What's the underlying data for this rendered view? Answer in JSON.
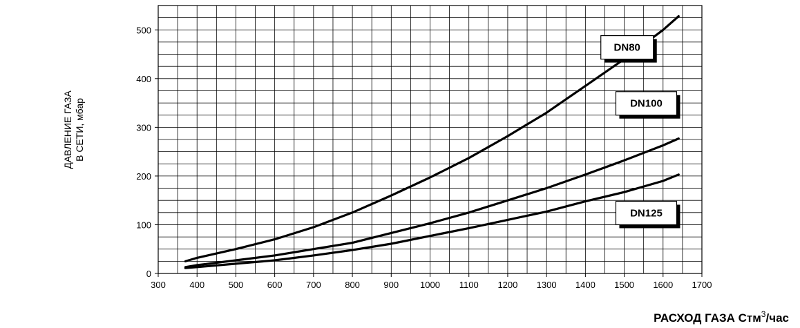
{
  "chart_data": {
    "type": "line",
    "title": "",
    "xlabel": "РАСХОД ГАЗА Стм",
    "xlabel_sup": "3",
    "xlabel_suffix": "/час",
    "ylabel_lines": [
      "ДАВЛЕНИЕ ГАЗА",
      "В СЕТИ, мбар"
    ],
    "xlim": [
      300,
      1700
    ],
    "ylim": [
      0,
      550
    ],
    "x_ticks": [
      300,
      400,
      500,
      600,
      700,
      800,
      900,
      1000,
      1100,
      1200,
      1300,
      1400,
      1500,
      1600,
      1700
    ],
    "y_ticks": [
      0,
      100,
      200,
      300,
      400,
      500
    ],
    "grid": true,
    "grid_x_step": 50,
    "grid_y_step": 25,
    "legend": "inline boxed labels near curves",
    "series": [
      {
        "name": "DN80",
        "x": [
          370,
          400,
          500,
          600,
          700,
          800,
          900,
          1000,
          1100,
          1200,
          1300,
          1400,
          1500,
          1600,
          1640
        ],
        "values": [
          25,
          32,
          50,
          70,
          95,
          125,
          160,
          197,
          237,
          282,
          330,
          385,
          440,
          500,
          528
        ],
        "label_at": [
          1575,
          440
        ]
      },
      {
        "name": "DN100",
        "x": [
          370,
          400,
          500,
          600,
          700,
          800,
          900,
          1000,
          1100,
          1200,
          1300,
          1400,
          1500,
          1600,
          1640
        ],
        "values": [
          13,
          17,
          27,
          37,
          50,
          63,
          83,
          103,
          125,
          150,
          175,
          203,
          232,
          263,
          277
        ],
        "label_at": [
          1635,
          325
        ]
      },
      {
        "name": "DN125",
        "x": [
          370,
          400,
          500,
          600,
          700,
          800,
          900,
          1000,
          1100,
          1200,
          1300,
          1400,
          1500,
          1600,
          1640
        ],
        "values": [
          11,
          13,
          20,
          27,
          37,
          48,
          61,
          77,
          93,
          110,
          127,
          148,
          167,
          190,
          203
        ],
        "label_at": [
          1635,
          100
        ]
      }
    ]
  }
}
